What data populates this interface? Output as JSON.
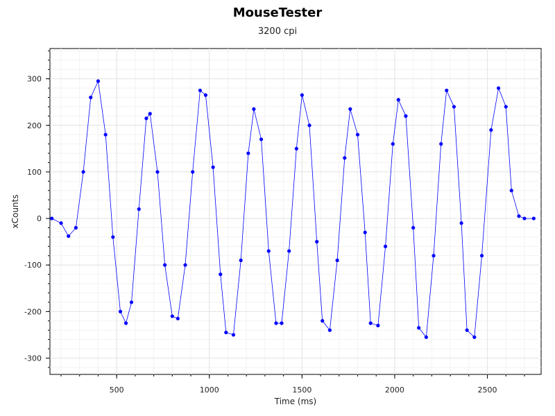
{
  "chart_data": {
    "type": "scatter",
    "title": "MouseTester",
    "subtitle": "3200 cpi",
    "xlabel": "Time (ms)",
    "ylabel": "xCounts",
    "xlim": [
      140,
      2790
    ],
    "ylim": [
      -335,
      365
    ],
    "x_ticks": [
      500,
      1000,
      1500,
      2000,
      2500
    ],
    "y_ticks": [
      -300,
      -200,
      -100,
      0,
      100,
      200,
      300
    ],
    "grid": true,
    "series": [
      {
        "style": "markers+line",
        "color": "#0000ff",
        "x": [
          150,
          200,
          240,
          280,
          320,
          360,
          400,
          440,
          480,
          520,
          550,
          580,
          620,
          660,
          680,
          720,
          760,
          800,
          830,
          870,
          910,
          950,
          980,
          1020,
          1060,
          1090,
          1130,
          1170,
          1210,
          1240,
          1280,
          1320,
          1360,
          1390,
          1430,
          1470,
          1500,
          1540,
          1580,
          1610,
          1650,
          1690,
          1730,
          1760,
          1800,
          1840,
          1870,
          1910,
          1950,
          1990,
          2020,
          2060,
          2100,
          2130,
          2170,
          2210,
          2250,
          2280,
          2320,
          2360,
          2390,
          2430,
          2470,
          2520,
          2560,
          2600,
          2630,
          2670,
          2700,
          2750
        ],
        "y": [
          0,
          -10,
          -38,
          -20,
          100,
          260,
          295,
          180,
          -40,
          -200,
          -225,
          -180,
          20,
          215,
          225,
          100,
          -100,
          -210,
          -215,
          -100,
          100,
          275,
          265,
          110,
          -120,
          -245,
          -250,
          -90,
          140,
          235,
          170,
          -70,
          -225,
          -225,
          -70,
          150,
          265,
          200,
          -50,
          -220,
          -240,
          -90,
          130,
          235,
          180,
          -30,
          -225,
          -230,
          -60,
          160,
          255,
          220,
          -20,
          -235,
          -255,
          -80,
          160,
          275,
          240,
          -10,
          -240,
          -255,
          -80,
          190,
          280,
          240,
          60,
          5,
          0,
          0
        ]
      }
    ]
  }
}
